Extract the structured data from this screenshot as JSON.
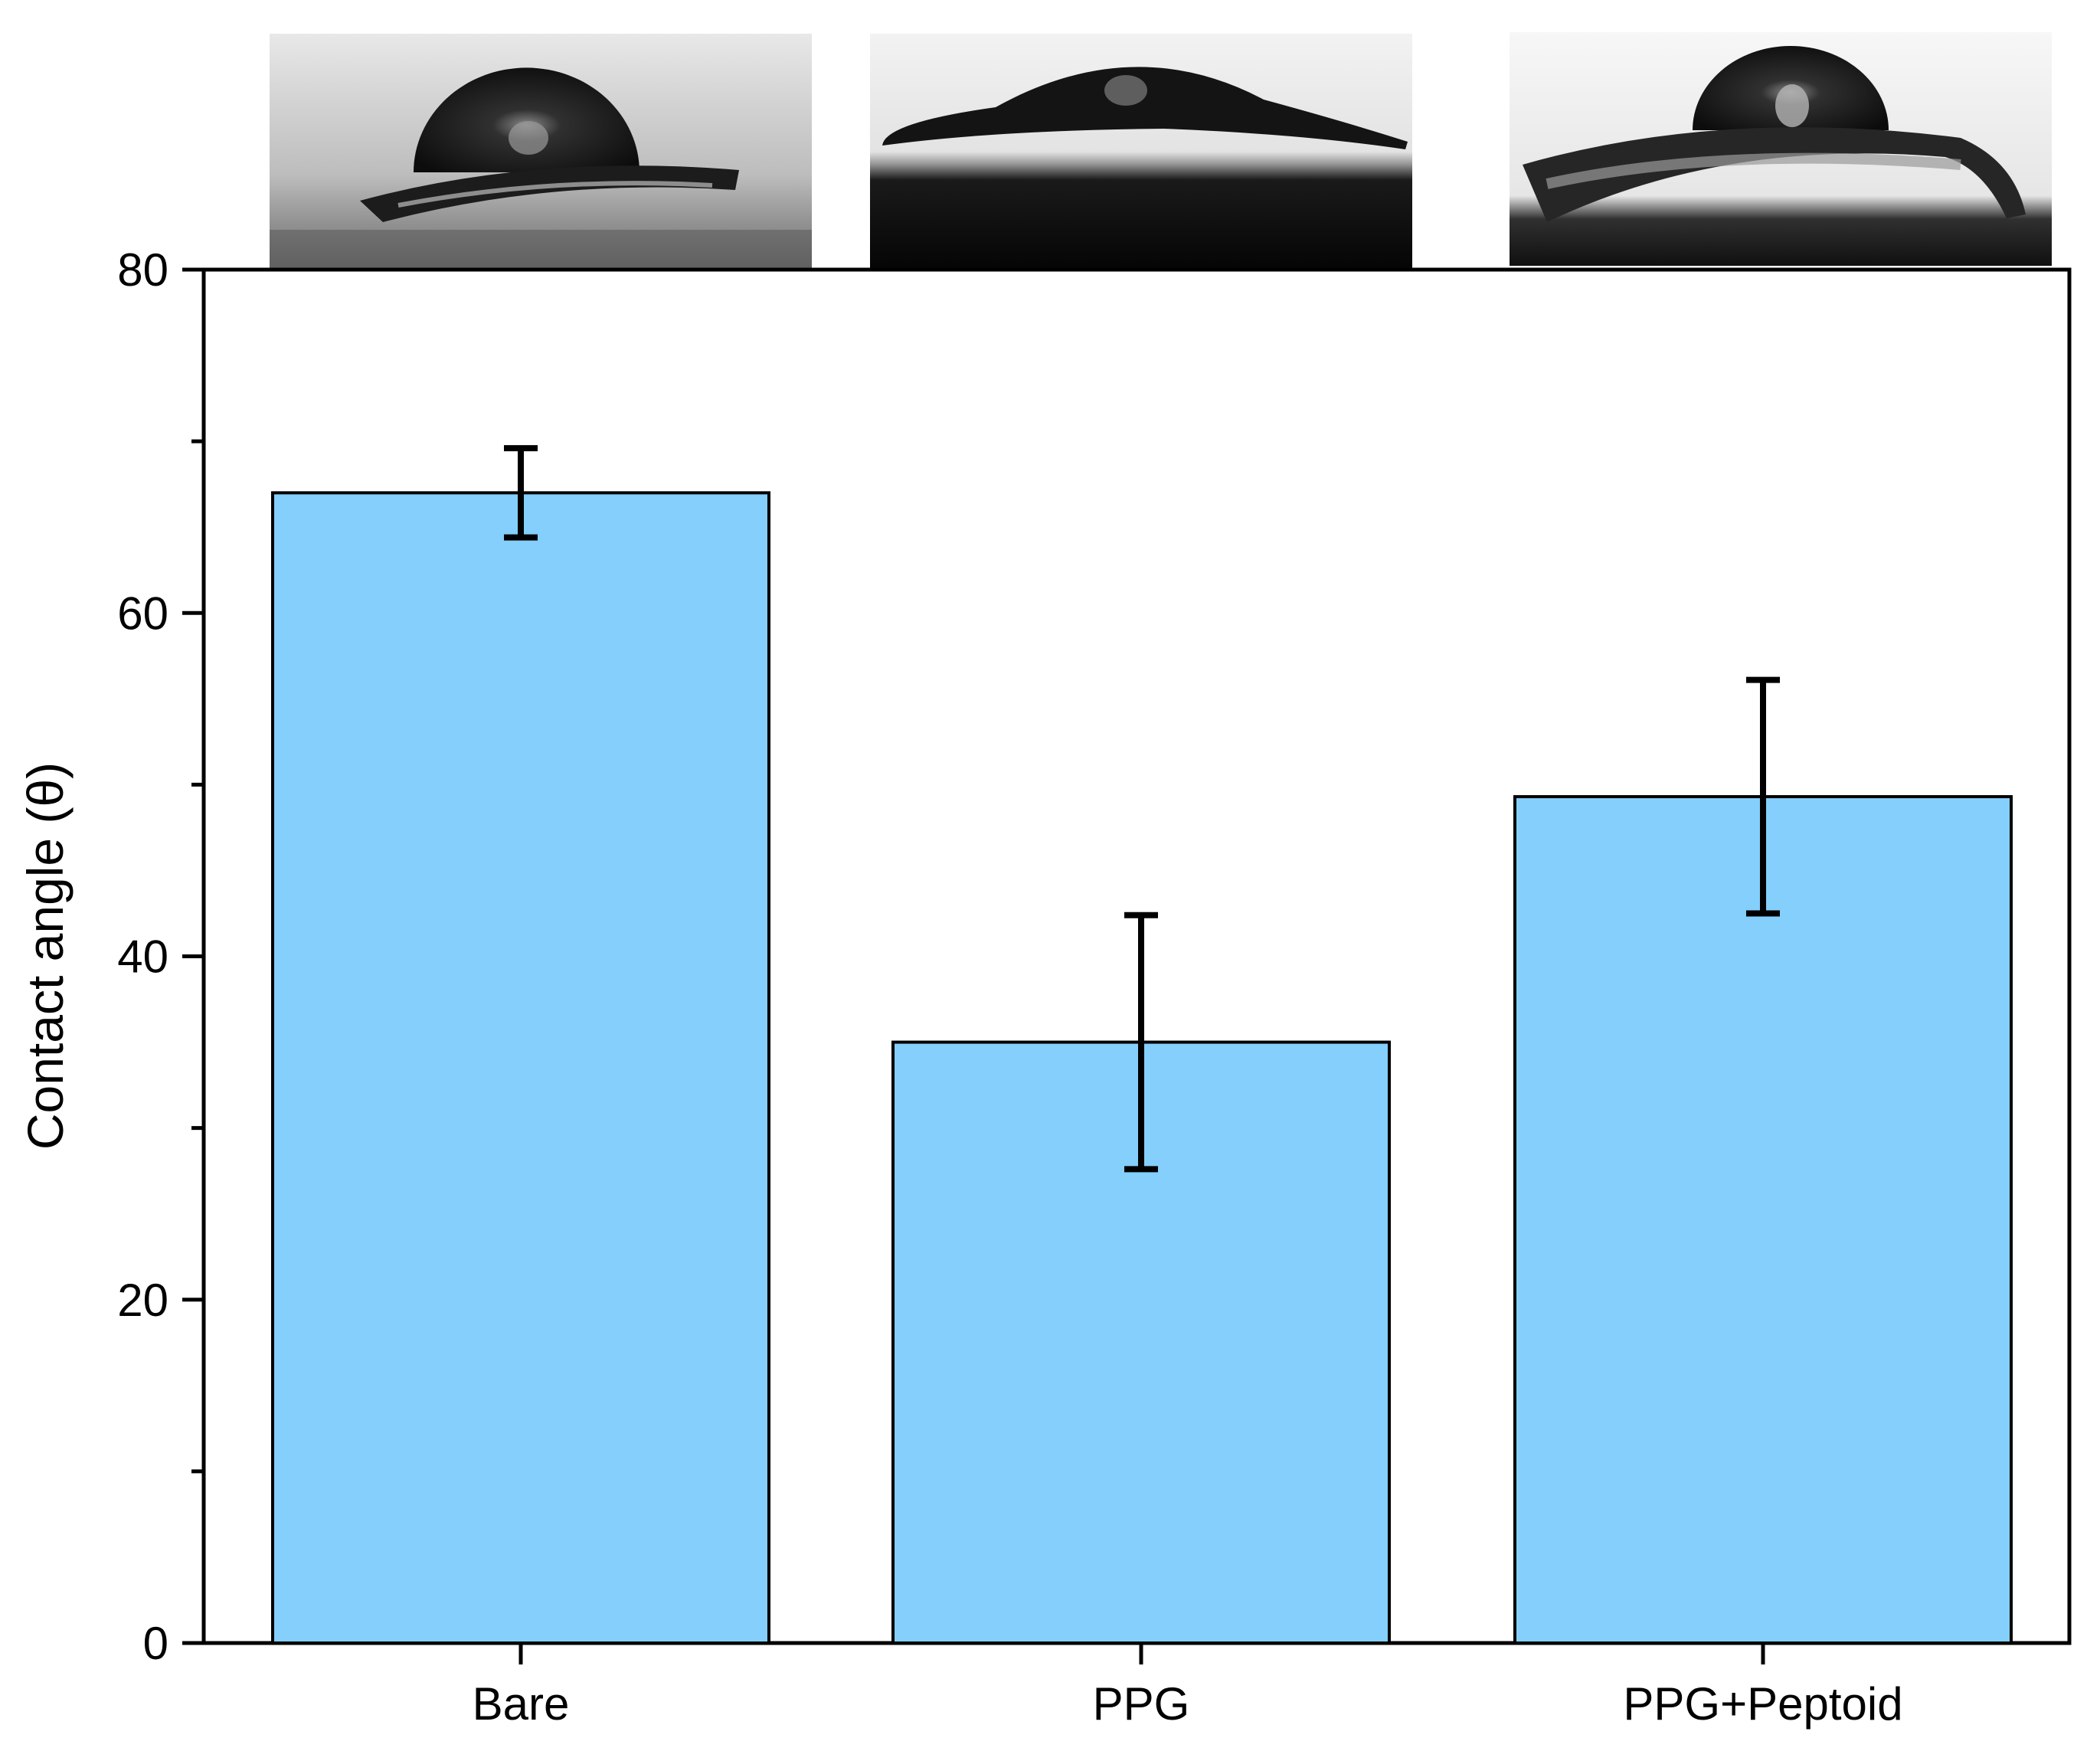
{
  "chart_data": {
    "type": "bar",
    "title": "",
    "xlabel": "",
    "ylabel": "Contact angle (θ)",
    "ylim": [
      0,
      80
    ],
    "yticks": [
      0,
      20,
      40,
      60,
      80
    ],
    "yticks_minor": [
      10,
      30,
      50,
      70
    ],
    "categories": [
      "Bare",
      "PPG",
      "PPG+Peptoid"
    ],
    "values": [
      67,
      35,
      49.3
    ],
    "errors": [
      2.6,
      7.4,
      6.8
    ],
    "grid": false,
    "legend": "none",
    "bar_color": "#84cffc",
    "edge_color": "#000000",
    "insets": [
      {
        "name": "droplet-image-bare",
        "depicts": "water droplet on bare substrate"
      },
      {
        "name": "droplet-image-ppg",
        "depicts": "water droplet on PPG substrate"
      },
      {
        "name": "droplet-image-ppg-peptoid",
        "depicts": "water droplet on PPG+Peptoid substrate"
      }
    ]
  }
}
